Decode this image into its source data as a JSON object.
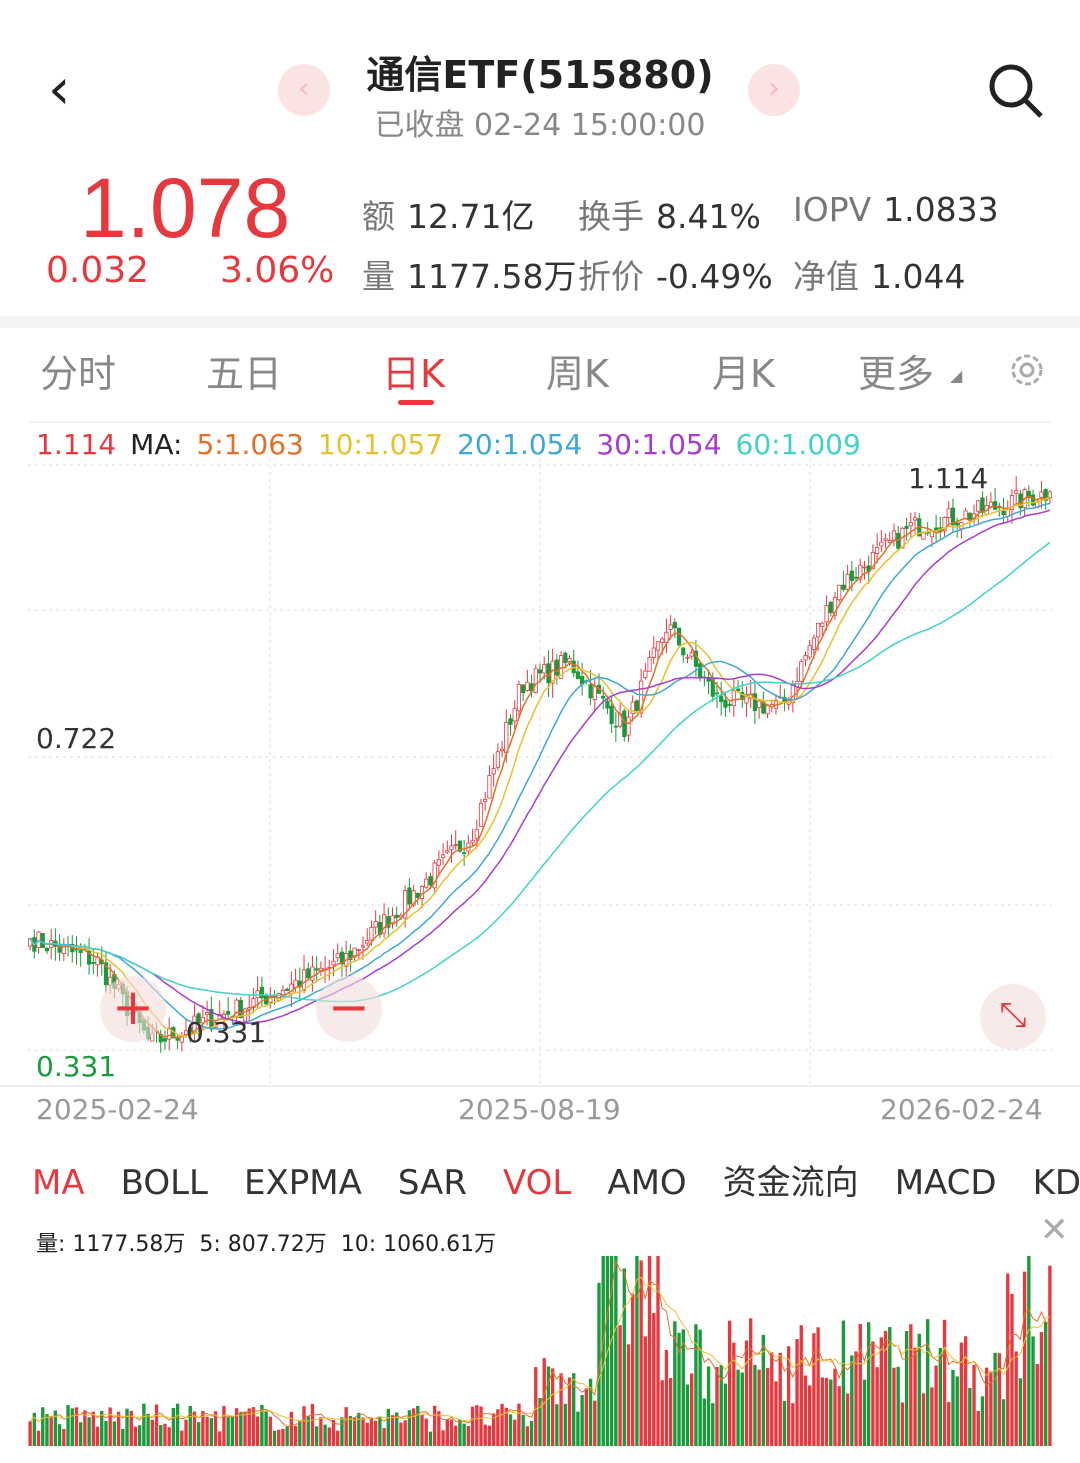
{
  "header": {
    "title": "通信ETF(515880)",
    "subtitle": "已收盘 02-24 15:00:00",
    "prev": "‹",
    "next": "›"
  },
  "quote": {
    "price": "1.078",
    "change": "0.032",
    "change_pct": "3.06%",
    "stats": [
      {
        "k": "额",
        "v": "12.71亿"
      },
      {
        "k": "换手",
        "v": "8.41%"
      },
      {
        "k": "IOPV",
        "v": "1.0833"
      },
      {
        "k": "量",
        "v": "1177.58万"
      },
      {
        "k": "折价",
        "v": "-0.49%"
      },
      {
        "k": "净值",
        "v": "1.044"
      }
    ]
  },
  "tabs": [
    "分时",
    "五日",
    "日K",
    "周K",
    "月K",
    "更多"
  ],
  "active_tab": "日K",
  "ma_legend": {
    "price": "1.114",
    "label": "MA:",
    "items": [
      "5:1.063",
      "10:1.057",
      "20:1.054",
      "30:1.054",
      "60:1.009"
    ]
  },
  "colors": {
    "up": "#e5393f",
    "down": "#1a9a3a",
    "ma5": "#e0702a",
    "ma10": "#e6c12e",
    "ma20": "#3fa7d6",
    "ma30": "#a83ccf",
    "ma60": "#41d3c7"
  },
  "price_axis": {
    "high_label": "1.114",
    "mid_label": "0.722",
    "low_label": "0.331",
    "max_marker": "1.114",
    "min_marker": "0.331"
  },
  "date_axis": [
    "2025-02-24",
    "2025-08-19",
    "2026-02-24"
  ],
  "zoom_in": "+",
  "zoom_out": "−",
  "indicators": [
    "MA",
    "BOLL",
    "EXPMA",
    "SAR",
    "VOL",
    "AMO",
    "资金流向",
    "MACD",
    "KD"
  ],
  "active_indicators": [
    "MA",
    "VOL"
  ],
  "volume": {
    "readout": "量: 1177.58万  5: 807.72万  10: 1060.61万"
  },
  "chart_data": {
    "type": "candlestick",
    "xlim": [
      "2025-02-24",
      "2026-02-24"
    ],
    "ylim": [
      0.331,
      1.114
    ],
    "close_keypoints": {
      "x": [
        "2025-02-24",
        "2025-03-20",
        "2025-04-08",
        "2025-05-12",
        "2025-06-16",
        "2025-07-14",
        "2025-08-01",
        "2025-08-19",
        "2025-09-05",
        "2025-09-25",
        "2025-10-10",
        "2025-10-28",
        "2025-11-20",
        "2025-12-10",
        "2026-01-05",
        "2026-01-28",
        "2026-02-24"
      ],
      "close": [
        0.48,
        0.45,
        0.34,
        0.39,
        0.45,
        0.55,
        0.62,
        0.82,
        0.85,
        0.76,
        0.9,
        0.8,
        0.79,
        0.95,
        1.03,
        1.05,
        1.078
      ]
    }
  }
}
